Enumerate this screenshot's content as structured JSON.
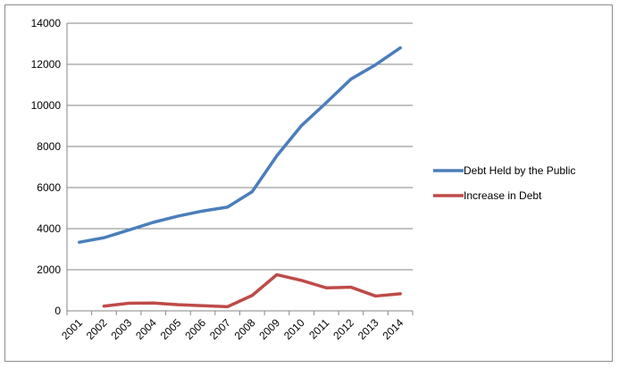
{
  "chart_data": {
    "type": "line",
    "categories": [
      "2001",
      "2002",
      "2003",
      "2004",
      "2005",
      "2006",
      "2007",
      "2008",
      "2009",
      "2010",
      "2011",
      "2012",
      "2013",
      "2014"
    ],
    "series": [
      {
        "name": "Debt Held by the Public",
        "color": "#4a7ebb",
        "values": [
          3340,
          3560,
          3930,
          4310,
          4610,
          4860,
          5050,
          5800,
          7550,
          9020,
          10130,
          11280,
          11980,
          12800
        ]
      },
      {
        "name": "Increase in Debt",
        "color": "#be4b48",
        "values": [
          null,
          230,
          370,
          380,
          300,
          250,
          200,
          750,
          1760,
          1480,
          1120,
          1150,
          720,
          830
        ]
      }
    ],
    "ylim": [
      0,
      14000
    ],
    "yticks": [
      "0",
      "2000",
      "4000",
      "6000",
      "8000",
      "10000",
      "12000",
      "14000"
    ],
    "grid": true,
    "legend": "right"
  }
}
